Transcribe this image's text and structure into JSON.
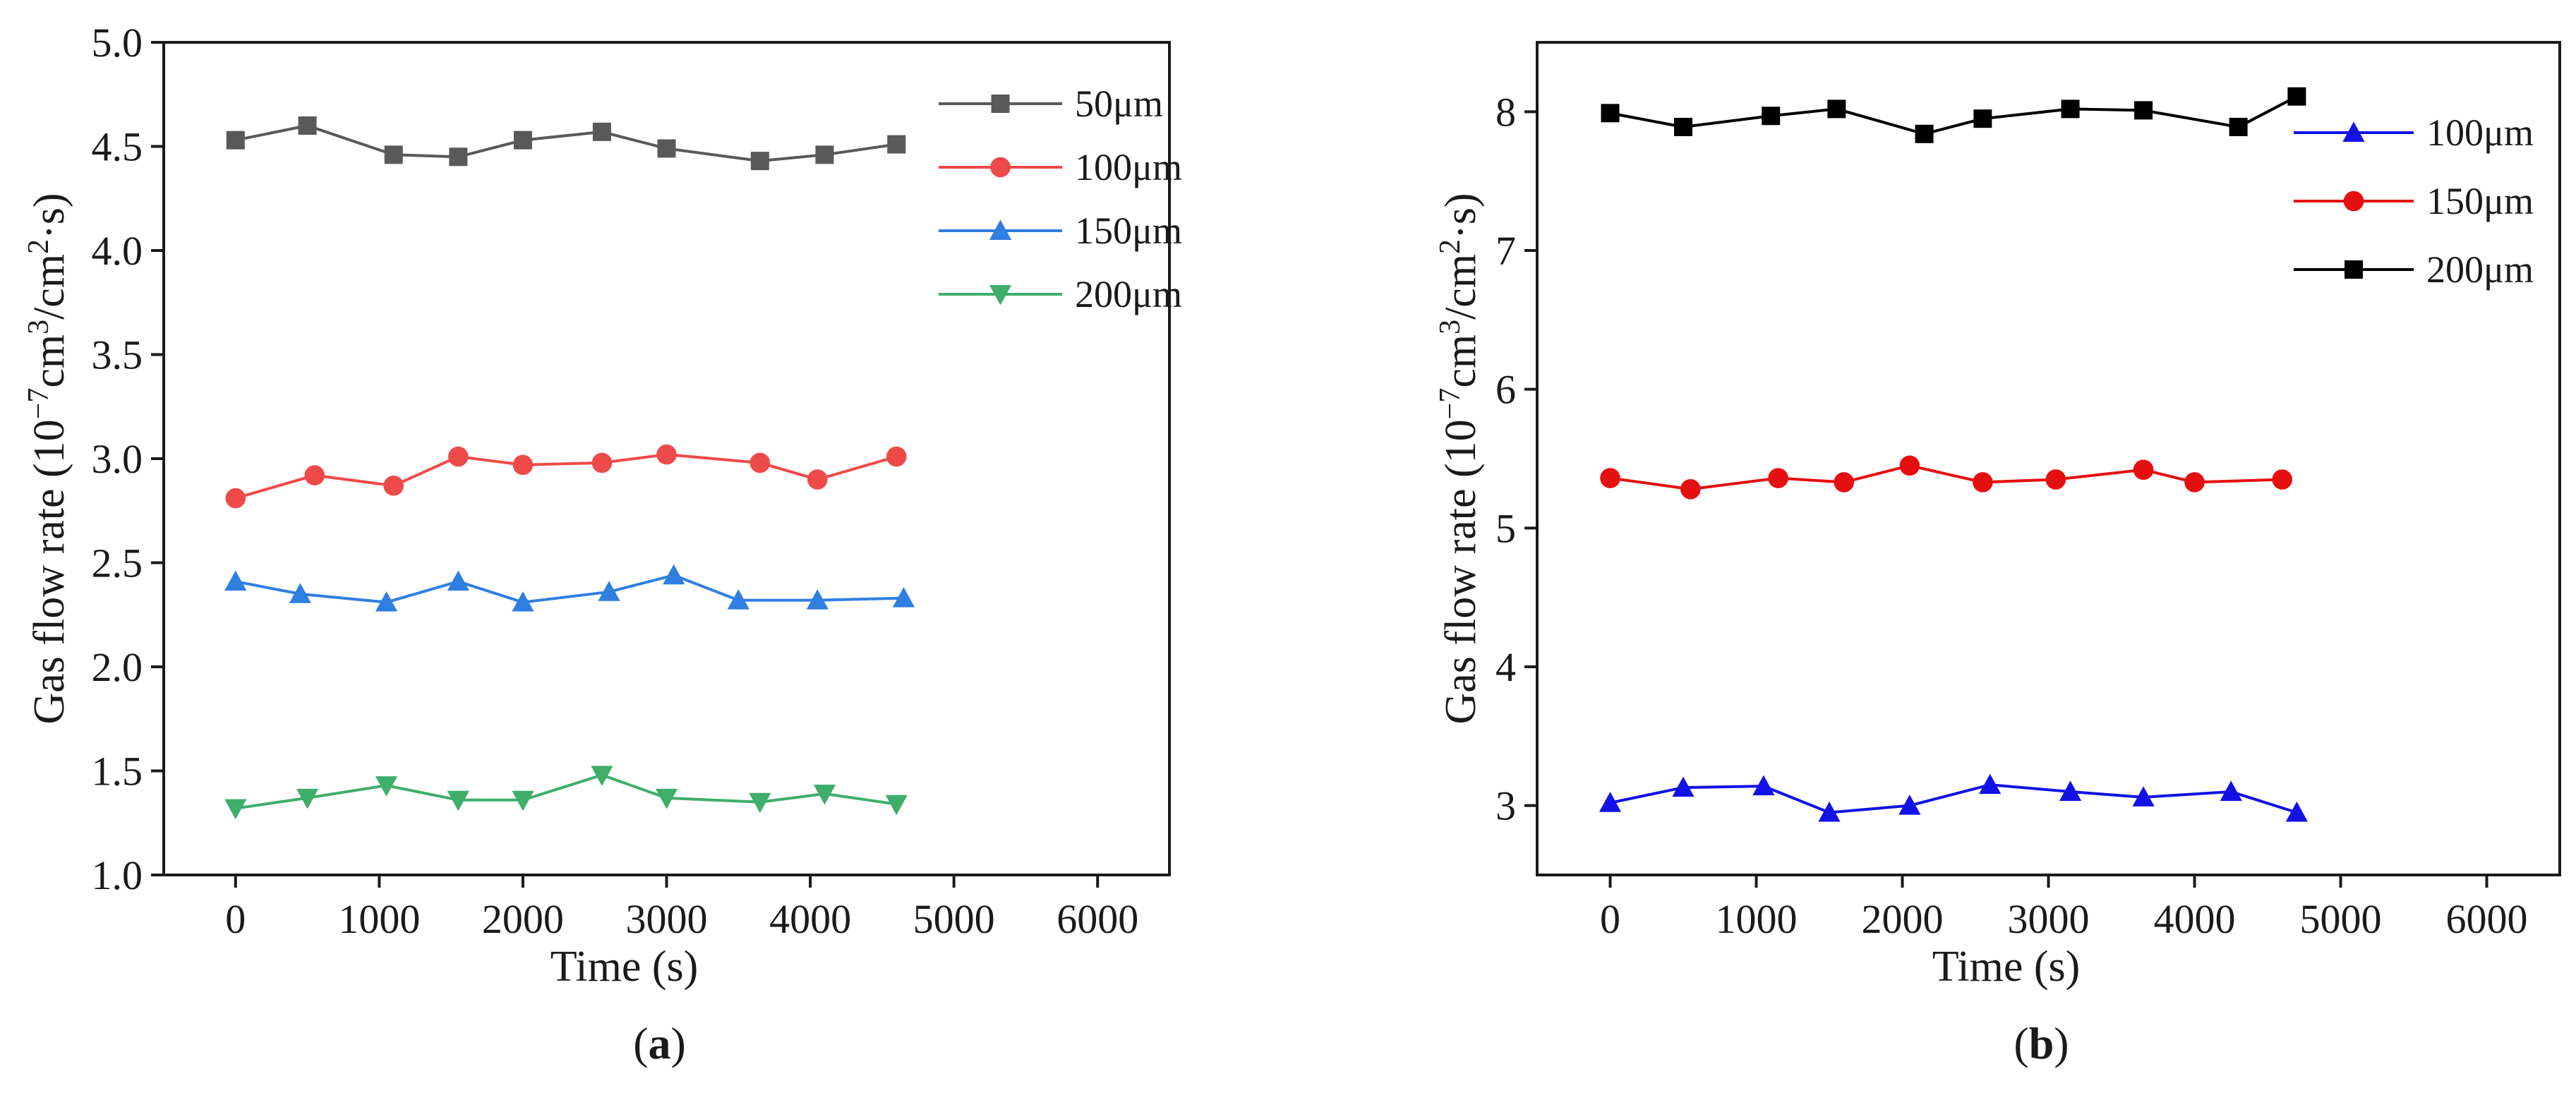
{
  "chart_data": [
    {
      "type": "line",
      "panel_label": "a",
      "xlabel": "Time (s)",
      "ylabel_parts": {
        "base": "Gas flow rate (10",
        "exp1": "−7",
        "mid1": "cm",
        "exp2": "3",
        "mid2": "/cm",
        "exp3": "2",
        "end": "·s)"
      },
      "xlim": [
        -500,
        6500
      ],
      "ylim": [
        1.0,
        5.0
      ],
      "x_ticks": [
        0,
        1000,
        2000,
        3000,
        4000,
        5000,
        6000
      ],
      "x_tick_labels": [
        "0",
        "1000",
        "2000",
        "3000",
        "4000",
        "5000",
        "6000"
      ],
      "y_ticks": [
        1.0,
        1.5,
        2.0,
        2.5,
        3.0,
        3.5,
        4.0,
        4.5,
        5.0
      ],
      "y_tick_labels": [
        "1.0",
        "1.5",
        "2.0",
        "2.5",
        "3.0",
        "3.5",
        "4.0",
        "4.5",
        "5.0"
      ],
      "legend_position": "top-right",
      "series": [
        {
          "name": "50μm",
          "color": "#595959",
          "marker": "square",
          "x": [
            0,
            500,
            1100,
            1550,
            2000,
            2550,
            3000,
            3650,
            4100,
            4600
          ],
          "y": [
            4.53,
            4.6,
            4.46,
            4.45,
            4.53,
            4.57,
            4.49,
            4.43,
            4.46,
            4.51
          ]
        },
        {
          "name": "100μm",
          "color": "#ef4a4a",
          "marker": "circle",
          "x": [
            0,
            550,
            1100,
            1550,
            2000,
            2550,
            3000,
            3650,
            4050,
            4600
          ],
          "y": [
            2.81,
            2.92,
            2.87,
            3.01,
            2.97,
            2.98,
            3.02,
            2.98,
            2.9,
            3.01
          ]
        },
        {
          "name": "150μm",
          "color": "#2f7fe0",
          "marker": "triangle-up",
          "x": [
            0,
            450,
            1050,
            1550,
            2000,
            2600,
            3050,
            3500,
            4050,
            4650
          ],
          "y": [
            2.41,
            2.35,
            2.31,
            2.41,
            2.31,
            2.36,
            2.44,
            2.32,
            2.32,
            2.33
          ]
        },
        {
          "name": "200μm",
          "color": "#3fae6b",
          "marker": "triangle-down",
          "x": [
            0,
            500,
            1050,
            1550,
            2000,
            2550,
            3000,
            3650,
            4100,
            4600
          ],
          "y": [
            1.32,
            1.37,
            1.43,
            1.36,
            1.36,
            1.48,
            1.37,
            1.35,
            1.39,
            1.34
          ]
        }
      ]
    },
    {
      "type": "line",
      "panel_label": "b",
      "xlabel": "Time (s)",
      "ylabel_parts": {
        "base": "Gas flow rate (10",
        "exp1": "−7",
        "mid1": "cm",
        "exp2": "3",
        "mid2": "/cm",
        "exp3": "2",
        "end": "·s)"
      },
      "xlim": [
        -500,
        6500
      ],
      "ylim": [
        2.5,
        8.5
      ],
      "x_ticks": [
        0,
        1000,
        2000,
        3000,
        4000,
        5000,
        6000
      ],
      "x_tick_labels": [
        "0",
        "1000",
        "2000",
        "3000",
        "4000",
        "5000",
        "6000"
      ],
      "y_ticks": [
        3,
        4,
        5,
        6,
        7,
        8
      ],
      "y_tick_labels": [
        "3",
        "4",
        "5",
        "6",
        "7",
        "8"
      ],
      "legend_position": "top-right",
      "series": [
        {
          "name": "100μm",
          "color": "#1212e6",
          "marker": "triangle-up",
          "x": [
            0,
            500,
            1050,
            1500,
            2050,
            2600,
            3150,
            3650,
            4250,
            4700
          ],
          "y": [
            3.02,
            3.13,
            3.14,
            2.95,
            3.0,
            3.15,
            3.1,
            3.06,
            3.1,
            2.95
          ]
        },
        {
          "name": "150μm",
          "color": "#e60f0f",
          "marker": "circle",
          "x": [
            0,
            550,
            1150,
            1600,
            2050,
            2550,
            3050,
            3650,
            4000,
            4600
          ],
          "y": [
            5.36,
            5.28,
            5.36,
            5.33,
            5.45,
            5.33,
            5.35,
            5.42,
            5.33,
            5.35
          ]
        },
        {
          "name": "200μm",
          "color": "#000000",
          "marker": "square",
          "x": [
            0,
            500,
            1100,
            1550,
            2150,
            2550,
            3150,
            3650,
            4300,
            4700
          ],
          "y": [
            7.99,
            7.89,
            7.97,
            8.02,
            7.84,
            7.95,
            8.02,
            8.01,
            7.89,
            8.11
          ]
        }
      ]
    }
  ]
}
